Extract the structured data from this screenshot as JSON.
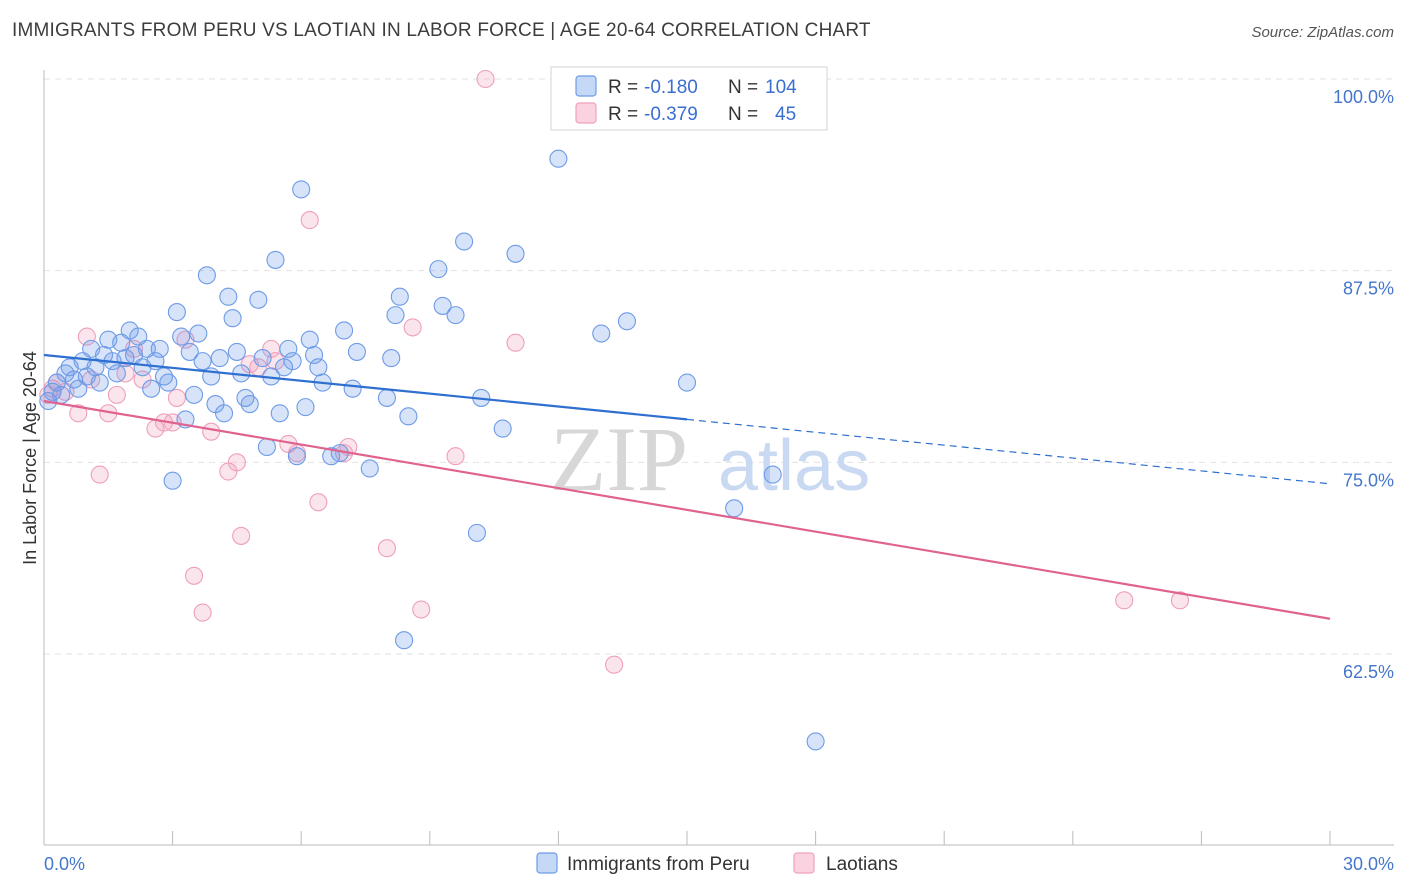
{
  "title": "IMMIGRANTS FROM PERU VS LAOTIAN IN LABOR FORCE | AGE 20-64 CORRELATION CHART",
  "source": "Source: ZipAtlas.com",
  "watermark": {
    "zip": "ZIP",
    "atlas": "atlas"
  },
  "legend": {
    "rows": [
      {
        "r_label": "R =",
        "r_value": "-0.180",
        "n_label": "N =",
        "n_value": "104",
        "color": "#6d9be8"
      },
      {
        "r_label": "R =",
        "r_value": "-0.379",
        "n_label": "N =",
        "n_value": "45",
        "color": "#f0a0bb"
      }
    ]
  },
  "bottom_legend": [
    {
      "label": "Immigrants from Peru",
      "color": "#6d9be8"
    },
    {
      "label": "Laotians",
      "color": "#f0a0bb"
    }
  ],
  "chart_data": {
    "type": "scatter",
    "title": "IMMIGRANTS FROM PERU VS LAOTIAN IN LABOR FORCE | AGE 20-64 CORRELATION CHART",
    "xlabel": "",
    "ylabel": "In Labor Force | Age 20-64",
    "xlim": [
      0,
      30
    ],
    "ylim": [
      50,
      102
    ],
    "x_tick_labels": [
      "0.0%",
      "30.0%"
    ],
    "y_ticks": [
      62.5,
      75.0,
      87.5,
      100.0
    ],
    "y_tick_labels": [
      "62.5%",
      "75.0%",
      "87.5%",
      "100.0%"
    ],
    "grid": true,
    "legend_position": "top-center",
    "series": [
      {
        "name": "Immigrants from Peru",
        "color": "#6d9be8",
        "trend": {
          "x0": 0,
          "y0": 82.0,
          "x1": 15.0,
          "y1": 77.8,
          "dashed_to_x": 30,
          "dashed_to_y": 73.6
        },
        "points": [
          [
            0.1,
            79.0
          ],
          [
            0.2,
            79.6
          ],
          [
            0.3,
            80.2
          ],
          [
            0.4,
            79.4
          ],
          [
            0.5,
            80.8
          ],
          [
            0.6,
            81.2
          ],
          [
            0.7,
            80.4
          ],
          [
            0.8,
            79.8
          ],
          [
            0.9,
            81.6
          ],
          [
            1.0,
            80.6
          ],
          [
            1.1,
            82.4
          ],
          [
            1.2,
            81.2
          ],
          [
            1.3,
            80.2
          ],
          [
            1.4,
            82.0
          ],
          [
            1.5,
            83.0
          ],
          [
            1.6,
            81.6
          ],
          [
            1.7,
            80.8
          ],
          [
            1.8,
            82.8
          ],
          [
            1.9,
            81.8
          ],
          [
            2.0,
            83.6
          ],
          [
            2.1,
            82.0
          ],
          [
            2.2,
            83.2
          ],
          [
            2.3,
            81.2
          ],
          [
            2.4,
            82.4
          ],
          [
            2.5,
            79.8
          ],
          [
            2.6,
            81.6
          ],
          [
            2.7,
            82.4
          ],
          [
            2.8,
            80.6
          ],
          [
            2.9,
            80.2
          ],
          [
            3.0,
            73.8
          ],
          [
            3.1,
            84.8
          ],
          [
            3.2,
            83.2
          ],
          [
            3.3,
            77.8
          ],
          [
            3.4,
            82.2
          ],
          [
            3.5,
            79.4
          ],
          [
            3.6,
            83.4
          ],
          [
            3.7,
            81.6
          ],
          [
            3.8,
            87.2
          ],
          [
            3.9,
            80.6
          ],
          [
            4.0,
            78.8
          ],
          [
            4.1,
            81.8
          ],
          [
            4.2,
            78.2
          ],
          [
            4.3,
            85.8
          ],
          [
            4.4,
            84.4
          ],
          [
            4.5,
            82.2
          ],
          [
            4.6,
            80.8
          ],
          [
            4.7,
            79.2
          ],
          [
            4.8,
            78.8
          ],
          [
            5.0,
            85.6
          ],
          [
            5.1,
            81.8
          ],
          [
            5.2,
            76.0
          ],
          [
            5.3,
            80.6
          ],
          [
            5.4,
            88.2
          ],
          [
            5.5,
            78.2
          ],
          [
            5.6,
            81.2
          ],
          [
            5.7,
            82.4
          ],
          [
            5.8,
            81.6
          ],
          [
            5.9,
            75.4
          ],
          [
            6.0,
            92.8
          ],
          [
            6.1,
            78.6
          ],
          [
            6.2,
            83.0
          ],
          [
            6.3,
            82.0
          ],
          [
            6.4,
            81.2
          ],
          [
            6.5,
            80.2
          ],
          [
            6.7,
            75.4
          ],
          [
            6.9,
            75.6
          ],
          [
            7.0,
            83.6
          ],
          [
            7.2,
            79.8
          ],
          [
            7.3,
            82.2
          ],
          [
            7.6,
            74.6
          ],
          [
            8.0,
            79.2
          ],
          [
            8.1,
            81.8
          ],
          [
            8.2,
            84.6
          ],
          [
            8.3,
            85.8
          ],
          [
            8.4,
            63.4
          ],
          [
            8.5,
            78.0
          ],
          [
            9.2,
            87.6
          ],
          [
            9.3,
            85.2
          ],
          [
            9.6,
            84.6
          ],
          [
            9.8,
            89.4
          ],
          [
            10.1,
            70.4
          ],
          [
            10.2,
            79.2
          ],
          [
            10.7,
            77.2
          ],
          [
            11.0,
            88.6
          ],
          [
            12.0,
            94.8
          ],
          [
            13.0,
            83.4
          ],
          [
            13.6,
            84.2
          ],
          [
            15.0,
            80.2
          ],
          [
            16.1,
            72.0
          ],
          [
            17.0,
            74.2
          ],
          [
            18.0,
            56.8
          ]
        ]
      },
      {
        "name": "Laotians",
        "color": "#f0a0bb",
        "trend": {
          "x0": 0,
          "y0": 79.0,
          "x1": 30,
          "y1": 64.8
        },
        "points": [
          [
            0.1,
            79.4
          ],
          [
            0.2,
            79.8
          ],
          [
            0.3,
            80.2
          ],
          [
            0.5,
            79.6
          ],
          [
            0.8,
            78.2
          ],
          [
            1.0,
            83.2
          ],
          [
            1.1,
            80.4
          ],
          [
            1.3,
            74.2
          ],
          [
            1.5,
            78.2
          ],
          [
            1.7,
            79.4
          ],
          [
            1.9,
            80.8
          ],
          [
            2.1,
            82.4
          ],
          [
            2.3,
            80.4
          ],
          [
            2.6,
            77.2
          ],
          [
            2.8,
            77.6
          ],
          [
            3.0,
            77.6
          ],
          [
            3.1,
            79.2
          ],
          [
            3.3,
            83.0
          ],
          [
            3.5,
            67.6
          ],
          [
            3.7,
            65.2
          ],
          [
            3.9,
            77.0
          ],
          [
            4.3,
            74.4
          ],
          [
            4.5,
            75.0
          ],
          [
            4.6,
            70.2
          ],
          [
            4.8,
            81.4
          ],
          [
            5.0,
            81.2
          ],
          [
            5.3,
            82.4
          ],
          [
            5.4,
            81.6
          ],
          [
            5.7,
            76.2
          ],
          [
            5.9,
            75.6
          ],
          [
            6.2,
            90.8
          ],
          [
            6.4,
            72.4
          ],
          [
            7.0,
            75.6
          ],
          [
            7.1,
            76.0
          ],
          [
            8.0,
            69.4
          ],
          [
            8.6,
            83.8
          ],
          [
            8.8,
            65.4
          ],
          [
            9.6,
            75.4
          ],
          [
            10.3,
            100.0
          ],
          [
            11.0,
            82.8
          ],
          [
            13.3,
            61.8
          ],
          [
            25.2,
            66.0
          ],
          [
            26.5,
            66.0
          ]
        ]
      }
    ]
  }
}
